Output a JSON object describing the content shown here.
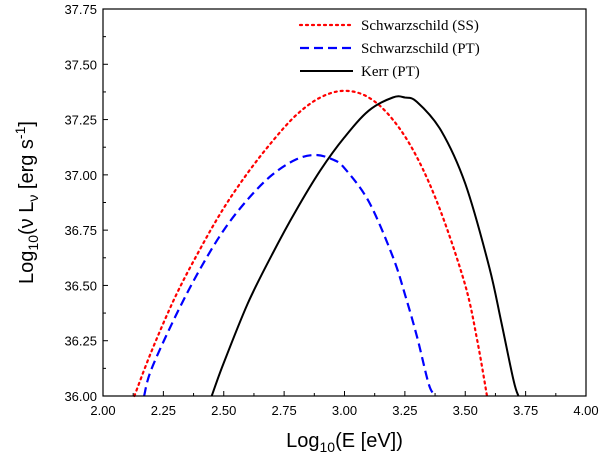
{
  "chart_data": {
    "type": "line",
    "title": "",
    "xlabel": {
      "base": "Log",
      "sub": "10",
      "rest": "(E [eV])"
    },
    "ylabel": {
      "base": "Log",
      "sub": "10",
      "mid": "(ν L",
      "sub2": "ν",
      "unit": " [erg s",
      "sup": "-1",
      "end": "]"
    },
    "xlim": [
      2.0,
      4.0
    ],
    "ylim": [
      36.0,
      37.75
    ],
    "xticks": [
      "2.00",
      "2.25",
      "2.50",
      "2.75",
      "3.00",
      "3.25",
      "3.50",
      "3.75",
      "4.00"
    ],
    "yticks": [
      "36.00",
      "36.25",
      "36.50",
      "36.75",
      "37.00",
      "37.25",
      "37.50",
      "37.75"
    ],
    "legend_position": "top-right",
    "series": [
      {
        "name": "Schwarzschild (SS)",
        "color": "#ff0000",
        "style": "dotted",
        "x": [
          2.13,
          2.2,
          2.3,
          2.4,
          2.5,
          2.6,
          2.7,
          2.8,
          2.9,
          3.0,
          3.1,
          3.2,
          3.3,
          3.4,
          3.5,
          3.55,
          3.59
        ],
        "y": [
          36.0,
          36.2,
          36.45,
          36.66,
          36.85,
          37.01,
          37.15,
          37.27,
          37.35,
          37.38,
          37.35,
          37.25,
          37.08,
          36.83,
          36.5,
          36.25,
          36.0
        ]
      },
      {
        "name": "Schwarzschild (PT)",
        "color": "#0000ff",
        "style": "dashed",
        "x": [
          2.17,
          2.2,
          2.3,
          2.4,
          2.5,
          2.6,
          2.7,
          2.8,
          2.88,
          2.95,
          3.0,
          3.1,
          3.2,
          3.25,
          3.3,
          3.35,
          3.38
        ],
        "y": [
          36.0,
          36.12,
          36.36,
          36.57,
          36.75,
          36.89,
          37.0,
          37.07,
          37.09,
          37.07,
          37.03,
          36.88,
          36.63,
          36.46,
          36.27,
          36.05,
          36.0
        ]
      },
      {
        "name": "Kerr (PT)",
        "color": "#000000",
        "style": "solid",
        "x": [
          2.45,
          2.5,
          2.6,
          2.7,
          2.8,
          2.9,
          3.0,
          3.1,
          3.2,
          3.25,
          3.3,
          3.4,
          3.5,
          3.6,
          3.65,
          3.7,
          3.72
        ],
        "y": [
          36.0,
          36.15,
          36.42,
          36.64,
          36.84,
          37.02,
          37.17,
          37.29,
          37.35,
          37.35,
          37.33,
          37.2,
          36.96,
          36.58,
          36.33,
          36.07,
          36.0
        ]
      }
    ]
  }
}
